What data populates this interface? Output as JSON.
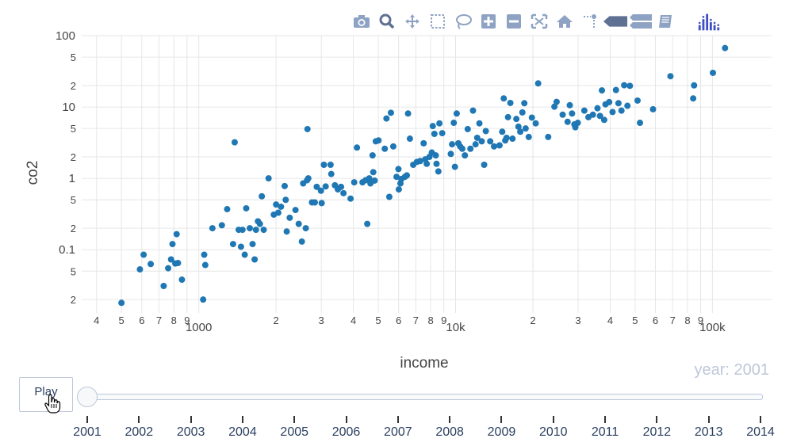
{
  "modebar": {
    "buttons": [
      {
        "name": "camera-icon"
      },
      {
        "name": "zoom-icon"
      },
      {
        "name": "pan-icon"
      },
      {
        "name": "box-select-icon"
      },
      {
        "name": "lasso-select-icon"
      },
      {
        "name": "zoom-in-icon"
      },
      {
        "name": "zoom-out-icon"
      },
      {
        "name": "autoscale-icon"
      },
      {
        "name": "reset-axes-icon"
      },
      {
        "name": "toggle-spike-lines-icon"
      },
      {
        "name": "hover-closest-icon"
      },
      {
        "name": "hover-compare-icon"
      },
      {
        "name": "edit-chart-studio-icon"
      },
      {
        "name": "plotly-logo-icon"
      }
    ]
  },
  "chart_data": {
    "type": "scatter",
    "xlabel": "income",
    "ylabel": "co2",
    "x_scale": "log",
    "y_scale": "log",
    "xlim": [
      350,
      170000
    ],
    "ylim": [
      0.013,
      100
    ],
    "grid": true,
    "color": "#1f77b4",
    "x_ticks": [
      {
        "v": 400,
        "t": "4",
        "major": false
      },
      {
        "v": 500,
        "t": "5",
        "major": false
      },
      {
        "v": 600,
        "t": "6",
        "major": false
      },
      {
        "v": 700,
        "t": "7",
        "major": false
      },
      {
        "v": 800,
        "t": "8",
        "major": false
      },
      {
        "v": 900,
        "t": "9",
        "major": false
      },
      {
        "v": 1000,
        "t": "1000",
        "major": true
      },
      {
        "v": 2000,
        "t": "2",
        "major": false
      },
      {
        "v": 3000,
        "t": "3",
        "major": false
      },
      {
        "v": 4000,
        "t": "4",
        "major": false
      },
      {
        "v": 5000,
        "t": "5",
        "major": false
      },
      {
        "v": 6000,
        "t": "6",
        "major": false
      },
      {
        "v": 7000,
        "t": "7",
        "major": false
      },
      {
        "v": 8000,
        "t": "8",
        "major": false
      },
      {
        "v": 9000,
        "t": "9",
        "major": false
      },
      {
        "v": 10000,
        "t": "10k",
        "major": true
      },
      {
        "v": 20000,
        "t": "2",
        "major": false
      },
      {
        "v": 30000,
        "t": "3",
        "major": false
      },
      {
        "v": 40000,
        "t": "4",
        "major": false
      },
      {
        "v": 50000,
        "t": "5",
        "major": false
      },
      {
        "v": 60000,
        "t": "6",
        "major": false
      },
      {
        "v": 70000,
        "t": "7",
        "major": false
      },
      {
        "v": 80000,
        "t": "8",
        "major": false
      },
      {
        "v": 90000,
        "t": "9",
        "major": false
      },
      {
        "v": 100000,
        "t": "100k",
        "major": true
      }
    ],
    "y_ticks": [
      {
        "v": 0.02,
        "t": "2",
        "major": false
      },
      {
        "v": 0.05,
        "t": "5",
        "major": false
      },
      {
        "v": 0.1,
        "t": "0.1",
        "major": true
      },
      {
        "v": 0.2,
        "t": "2",
        "major": false
      },
      {
        "v": 0.5,
        "t": "5",
        "major": false
      },
      {
        "v": 1,
        "t": "1",
        "major": true
      },
      {
        "v": 2,
        "t": "2",
        "major": false
      },
      {
        "v": 5,
        "t": "5",
        "major": false
      },
      {
        "v": 10,
        "t": "10",
        "major": true
      },
      {
        "v": 20,
        "t": "2",
        "major": false
      },
      {
        "v": 50,
        "t": "5",
        "major": false
      },
      {
        "v": 100,
        "t": "100",
        "major": true
      }
    ],
    "points": [
      [
        500,
        0.018
      ],
      [
        590,
        0.053
      ],
      [
        610,
        0.085
      ],
      [
        650,
        0.063
      ],
      [
        730,
        0.031
      ],
      [
        760,
        0.055
      ],
      [
        780,
        0.073
      ],
      [
        790,
        0.12
      ],
      [
        810,
        0.064
      ],
      [
        820,
        0.165
      ],
      [
        830,
        0.065
      ],
      [
        860,
        0.038
      ],
      [
        1040,
        0.02
      ],
      [
        1050,
        0.085
      ],
      [
        1060,
        0.061
      ],
      [
        1130,
        0.2
      ],
      [
        1230,
        0.22
      ],
      [
        1290,
        0.37
      ],
      [
        1360,
        0.12
      ],
      [
        1380,
        3.2
      ],
      [
        1430,
        0.19
      ],
      [
        1460,
        0.11
      ],
      [
        1480,
        0.19
      ],
      [
        1510,
        0.085
      ],
      [
        1530,
        0.38
      ],
      [
        1580,
        0.2
      ],
      [
        1620,
        0.12
      ],
      [
        1650,
        0.073
      ],
      [
        1670,
        0.19
      ],
      [
        1700,
        0.25
      ],
      [
        1730,
        0.23
      ],
      [
        1760,
        0.56
      ],
      [
        1790,
        0.19
      ],
      [
        1870,
        1.0
      ],
      [
        1960,
        0.31
      ],
      [
        2000,
        0.43
      ],
      [
        2040,
        0.33
      ],
      [
        2090,
        0.4
      ],
      [
        2160,
        0.78
      ],
      [
        2180,
        0.5
      ],
      [
        2200,
        0.18
      ],
      [
        2260,
        0.28
      ],
      [
        2380,
        0.36
      ],
      [
        2450,
        0.23
      ],
      [
        2520,
        0.13
      ],
      [
        2550,
        0.85
      ],
      [
        2610,
        0.2
      ],
      [
        2640,
        0.94
      ],
      [
        2650,
        4.9
      ],
      [
        2670,
        1.0
      ],
      [
        2760,
        0.46
      ],
      [
        2830,
        0.46
      ],
      [
        2880,
        0.76
      ],
      [
        2990,
        0.67
      ],
      [
        3010,
        0.45
      ],
      [
        3070,
        1.55
      ],
      [
        3120,
        0.77
      ],
      [
        3260,
        1.55
      ],
      [
        3280,
        1.15
      ],
      [
        3390,
        0.8
      ],
      [
        3480,
        0.7
      ],
      [
        3580,
        0.76
      ],
      [
        3660,
        0.62
      ],
      [
        3900,
        0.52
      ],
      [
        4030,
        0.88
      ],
      [
        4130,
        2.7
      ],
      [
        4340,
        0.88
      ],
      [
        4460,
        0.94
      ],
      [
        4530,
        0.23
      ],
      [
        4610,
        1.0
      ],
      [
        4660,
        0.85
      ],
      [
        4750,
        2.1
      ],
      [
        4780,
        1.22
      ],
      [
        4840,
        0.93
      ],
      [
        4890,
        3.3
      ],
      [
        5010,
        3.4
      ],
      [
        5300,
        2.6
      ],
      [
        5380,
        6.9
      ],
      [
        5520,
        0.55
      ],
      [
        5600,
        8.3
      ],
      [
        5720,
        2.8
      ],
      [
        5890,
        1.05
      ],
      [
        5990,
        1.35
      ],
      [
        6010,
        0.7
      ],
      [
        6100,
        0.85
      ],
      [
        6150,
        0.98
      ],
      [
        6350,
        1.05
      ],
      [
        6460,
        1.1
      ],
      [
        6530,
        8.1
      ],
      [
        6640,
        3.6
      ],
      [
        6840,
        1.55
      ],
      [
        7070,
        1.7
      ],
      [
        7280,
        1.75
      ],
      [
        7510,
        3.1
      ],
      [
        7620,
        1.85
      ],
      [
        7720,
        1.6
      ],
      [
        7910,
        2.0
      ],
      [
        8080,
        2.3
      ],
      [
        8150,
        5.4
      ],
      [
        8270,
        4.2
      ],
      [
        8370,
        2.1
      ],
      [
        8430,
        1.6
      ],
      [
        8570,
        1.25
      ],
      [
        8650,
        5.9
      ],
      [
        8870,
        4.3
      ],
      [
        9580,
        2.2
      ],
      [
        9690,
        3.0
      ],
      [
        9840,
        6.0
      ],
      [
        9940,
        1.45
      ],
      [
        10100,
        8.1
      ],
      [
        10250,
        3.1
      ],
      [
        10420,
        2.8
      ],
      [
        10620,
        2.6
      ],
      [
        10870,
        2.1
      ],
      [
        11150,
        4.9
      ],
      [
        11420,
        2.6
      ],
      [
        11690,
        8.9
      ],
      [
        11960,
        3.0
      ],
      [
        12140,
        3.7
      ],
      [
        12380,
        5.9
      ],
      [
        12640,
        3.3
      ],
      [
        12920,
        1.55
      ],
      [
        13110,
        4.6
      ],
      [
        13640,
        3.3
      ],
      [
        14120,
        2.8
      ],
      [
        14830,
        2.9
      ],
      [
        15190,
        4.5
      ],
      [
        15400,
        13.2
      ],
      [
        15610,
        3.4
      ],
      [
        15790,
        3.7
      ],
      [
        16000,
        7.2
      ],
      [
        16340,
        11.4
      ],
      [
        16660,
        3.6
      ],
      [
        17240,
        6.8
      ],
      [
        17570,
        5.3
      ],
      [
        17860,
        4.5
      ],
      [
        18200,
        8.4
      ],
      [
        18520,
        11.3
      ],
      [
        18740,
        5.0
      ],
      [
        19270,
        3.8
      ],
      [
        19820,
        7.1
      ],
      [
        20510,
        5.9
      ],
      [
        20970,
        21.4
      ],
      [
        22940,
        3.8
      ],
      [
        24250,
        10.1
      ],
      [
        24740,
        11.8
      ],
      [
        26120,
        7.8
      ],
      [
        27300,
        6.2
      ],
      [
        27840,
        10.6
      ],
      [
        28410,
        8.1
      ],
      [
        29010,
        5.7
      ],
      [
        29270,
        5.2
      ],
      [
        29900,
        6.0
      ],
      [
        31720,
        8.9
      ],
      [
        32900,
        7.2
      ],
      [
        34250,
        7.8
      ],
      [
        35690,
        9.6
      ],
      [
        36500,
        7.5
      ],
      [
        37130,
        17.1
      ],
      [
        37900,
        6.6
      ],
      [
        38340,
        10.9
      ],
      [
        39630,
        11.7
      ],
      [
        40850,
        8.5
      ],
      [
        42120,
        17.3
      ],
      [
        43070,
        11.3
      ],
      [
        44250,
        8.9
      ],
      [
        45340,
        20.2
      ],
      [
        46680,
        10.4
      ],
      [
        47720,
        19.8
      ],
      [
        51110,
        12.3
      ],
      [
        52240,
        6.0
      ],
      [
        58730,
        9.3
      ],
      [
        68650,
        27.0
      ],
      [
        84170,
        13.2
      ],
      [
        84850,
        20.1
      ],
      [
        100460,
        30.1
      ],
      [
        112000,
        67.0
      ]
    ]
  },
  "animation": {
    "play_label": "Play",
    "current_year_label": "year: 2001",
    "years": [
      "2001",
      "2002",
      "2003",
      "2004",
      "2005",
      "2006",
      "2007",
      "2008",
      "2009",
      "2010",
      "2011",
      "2012",
      "2013",
      "2014"
    ],
    "selected_index": 0
  },
  "colors": {
    "marker": "#1f77b4",
    "grid": "#e6e6e6",
    "modebar_icon": "#8ea2c3",
    "modebar_active": "#5f7192",
    "plotly_logo": "#3f4fc6"
  }
}
